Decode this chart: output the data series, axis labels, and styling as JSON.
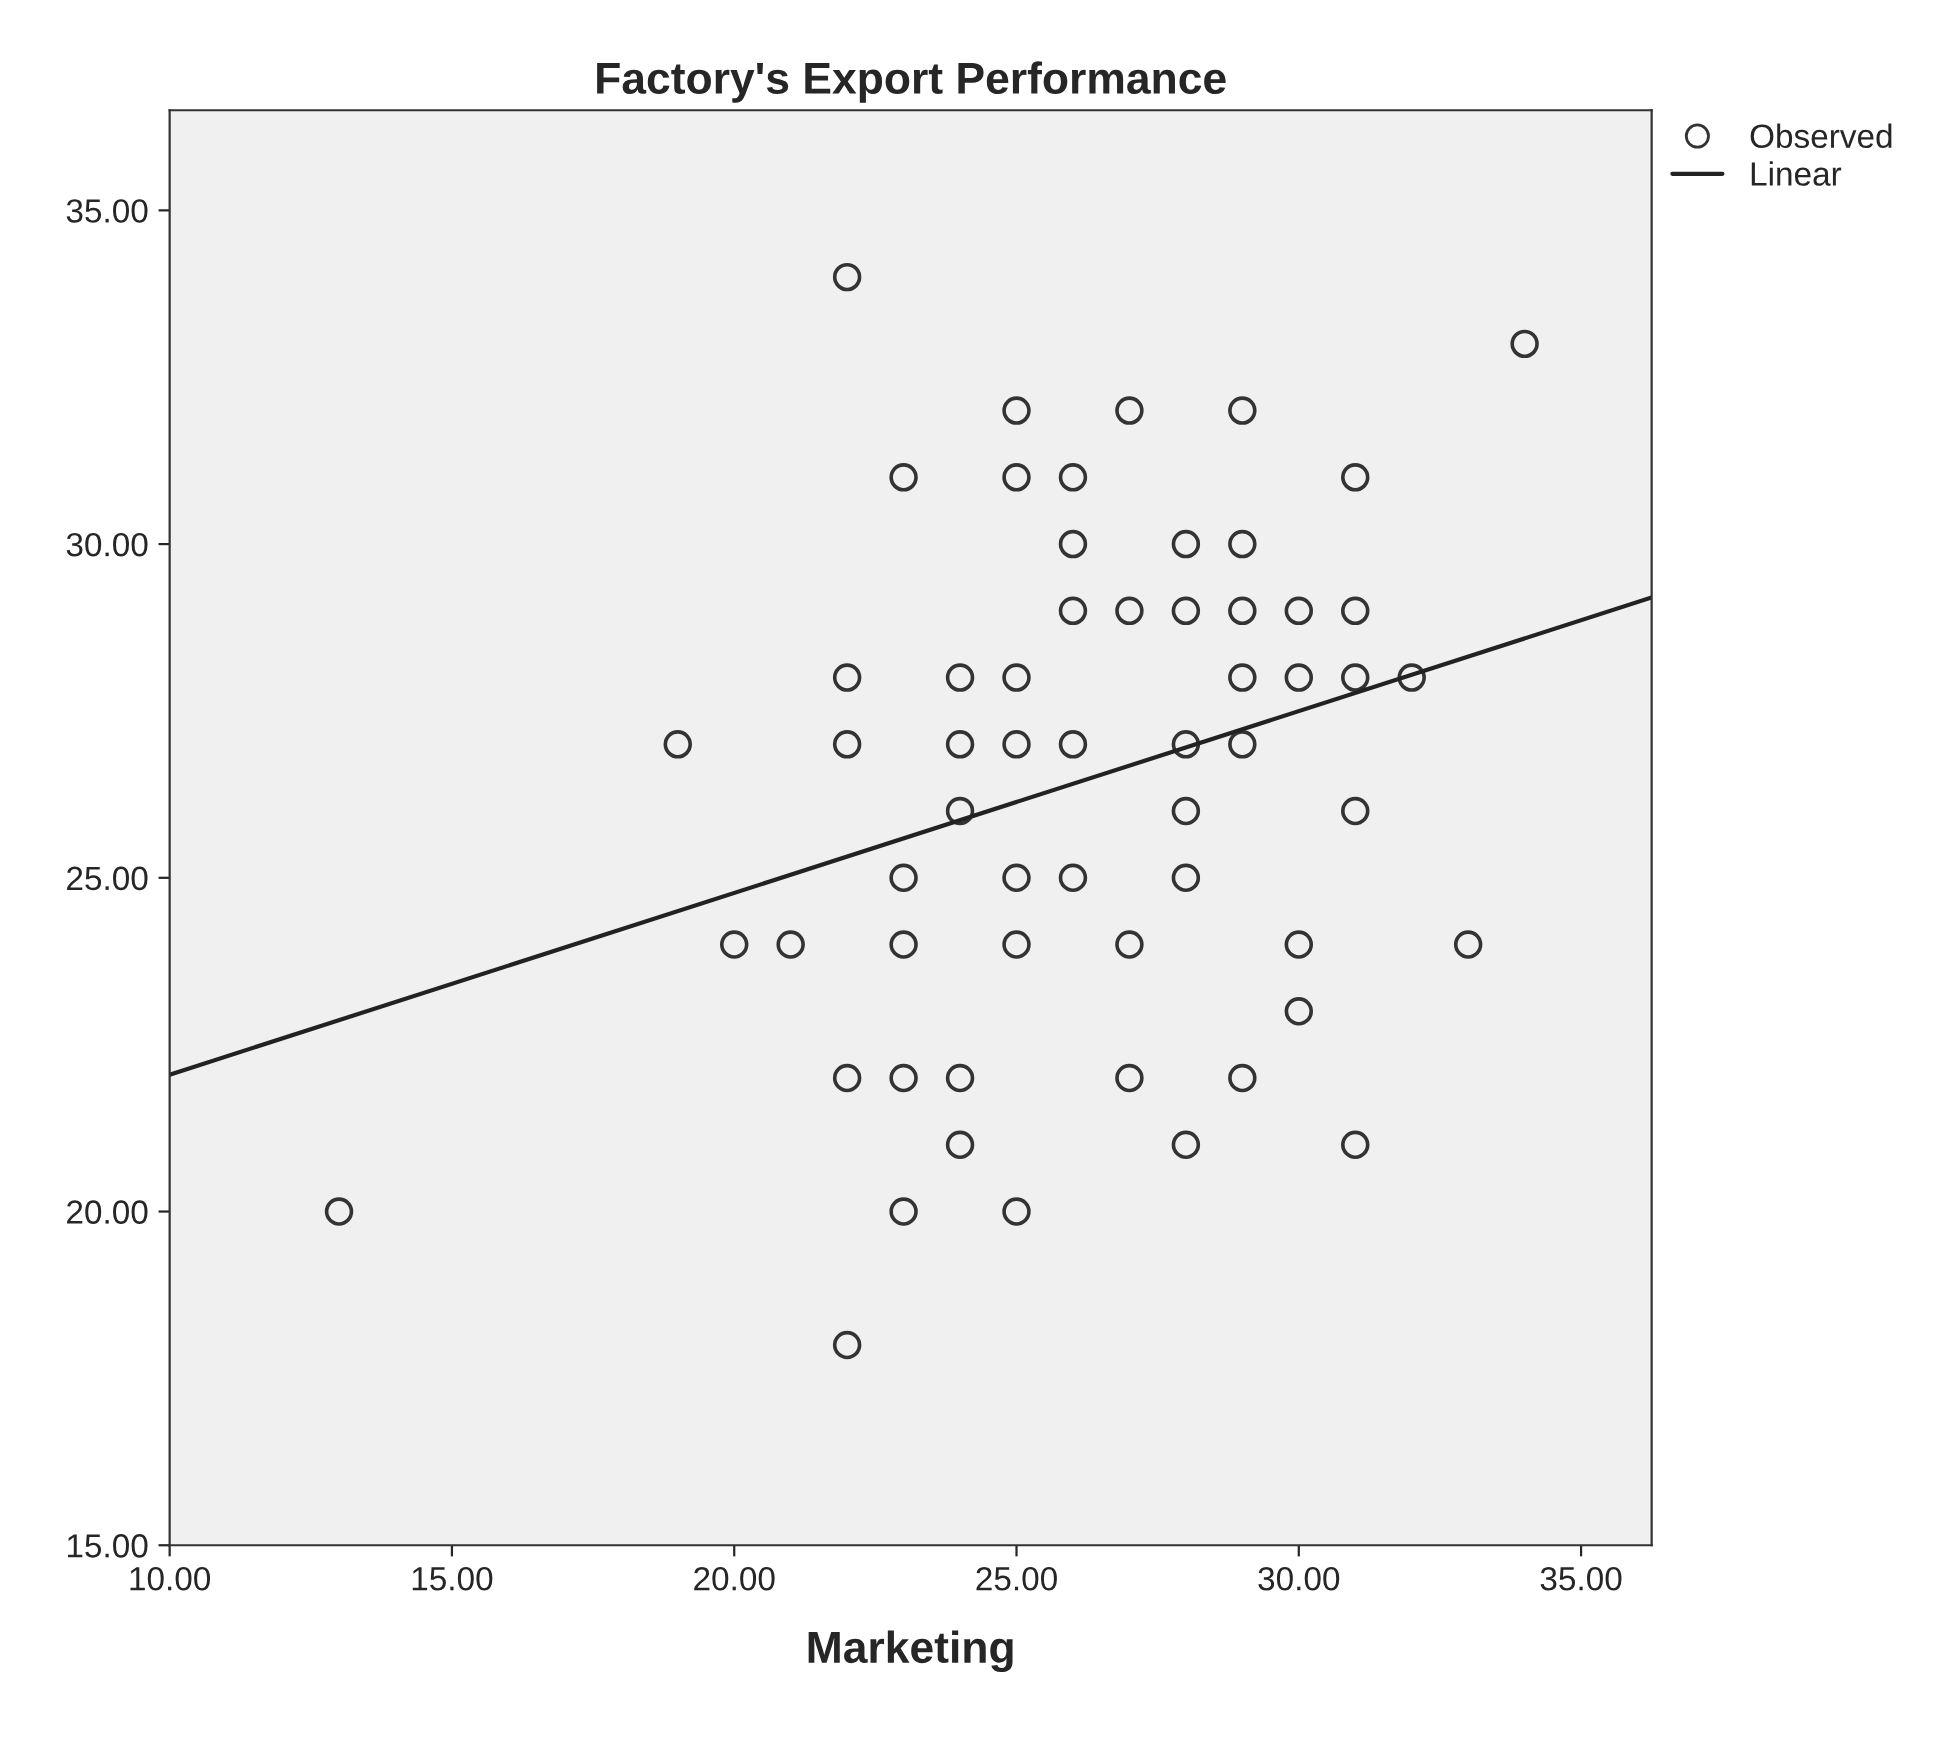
{
  "chart_data": {
    "type": "scatter",
    "title": "Factory's Export Performance",
    "xlabel": "Marketing",
    "xlim": [
      10,
      36.25
    ],
    "ylim": [
      15,
      36.5
    ],
    "xticks": [
      {
        "value": 10,
        "label": "10.00"
      },
      {
        "value": 15,
        "label": "15.00"
      },
      {
        "value": 20,
        "label": "20.00"
      },
      {
        "value": 25,
        "label": "25.00"
      },
      {
        "value": 30,
        "label": "30.00"
      },
      {
        "value": 35,
        "label": "35.00"
      }
    ],
    "yticks": [
      {
        "value": 15,
        "label": "15.00"
      },
      {
        "value": 20,
        "label": "20.00"
      },
      {
        "value": 25,
        "label": "25.00"
      },
      {
        "value": 30,
        "label": "30.00"
      },
      {
        "value": 35,
        "label": "35.00"
      }
    ],
    "grid": false,
    "legend": "top right",
    "series": [
      {
        "name": "Observed",
        "marker": "circle",
        "color": "#333333",
        "x": [
          13,
          19,
          20,
          21,
          22,
          22,
          22,
          22,
          22,
          23,
          23,
          23,
          23,
          23,
          24,
          24,
          24,
          24,
          24,
          25,
          25,
          25,
          25,
          25,
          25,
          25,
          26,
          26,
          26,
          26,
          26,
          27,
          27,
          27,
          27,
          28,
          28,
          28,
          28,
          28,
          28,
          29,
          29,
          29,
          29,
          29,
          29,
          30,
          30,
          30,
          30,
          31,
          31,
          31,
          31,
          31,
          32,
          33,
          34
        ],
        "values": [
          20,
          27,
          24,
          24,
          34,
          28,
          27,
          22,
          18,
          31,
          25,
          24,
          22,
          20,
          28,
          27,
          26,
          22,
          21,
          32,
          31,
          28,
          27,
          25,
          24,
          20,
          31,
          30,
          29,
          27,
          25,
          32,
          29,
          24,
          22,
          30,
          29,
          27,
          26,
          25,
          21,
          32,
          30,
          29,
          28,
          27,
          22,
          29,
          28,
          24,
          23,
          31,
          29,
          28,
          26,
          21,
          28,
          24,
          33
        ]
      },
      {
        "name": "Linear",
        "type": "line",
        "color": "#222222",
        "line_style": "solid",
        "x": [
          10,
          36.25
        ],
        "values": [
          22.05,
          29.2
        ]
      }
    ]
  }
}
